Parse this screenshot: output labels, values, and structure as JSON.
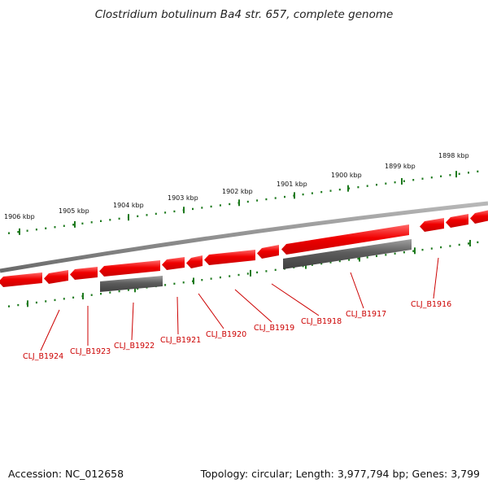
{
  "title": "Clostridium botulinum Ba4 str. 657, complete genome",
  "accession": "Accession: NC_012658",
  "stats": "Topology: circular; Length: 3,977,794 bp; Genes: 3,799",
  "colors": {
    "forward_gene": "#ee0000",
    "forward_gene_light": "#ff5a5a",
    "reverse_gene": "#5a5a5a",
    "reverse_gene_light": "#9a9a9a",
    "backbone": "#8a8a8a",
    "ticks": "#1e7a1e",
    "label": "#cc0000"
  },
  "kbp_scale": [
    {
      "label": "1906 kbp"
    },
    {
      "label": "1905 kbp"
    },
    {
      "label": "1904 kbp"
    },
    {
      "label": "1903 kbp"
    },
    {
      "label": "1902 kbp"
    },
    {
      "label": "1901 kbp"
    },
    {
      "label": "1900 kbp"
    },
    {
      "label": "1899 kbp"
    },
    {
      "label": "1898 kbp"
    }
  ],
  "gene_labels": [
    {
      "label": "CLJ_B1924"
    },
    {
      "label": "CLJ_B1923"
    },
    {
      "label": "CLJ_B1922"
    },
    {
      "label": "CLJ_B1921"
    },
    {
      "label": "CLJ_B1920"
    },
    {
      "label": "CLJ_B1919"
    },
    {
      "label": "CLJ_B1918"
    },
    {
      "label": "CLJ_B1917"
    },
    {
      "label": "CLJ_B1916"
    }
  ]
}
